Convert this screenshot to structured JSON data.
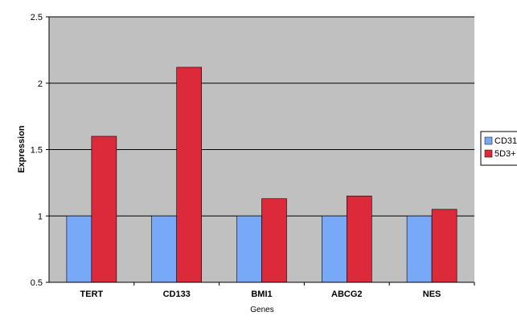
{
  "chart_data": {
    "type": "bar",
    "title": "",
    "xlabel": "Genes",
    "ylabel": "Expression",
    "categories": [
      "TERT",
      "CD133",
      "BMI1",
      "ABCG2",
      "NES"
    ],
    "series": [
      {
        "name": "CD31",
        "values": [
          1.0,
          1.0,
          1.0,
          1.0,
          1.0
        ],
        "color": "#78a8f8"
      },
      {
        "name": "5D3+",
        "values": [
          1.6,
          2.12,
          1.13,
          1.15,
          1.05
        ],
        "color": "#dd2a3b"
      }
    ],
    "ylim": [
      0.5,
      2.5
    ],
    "yticks": [
      0.5,
      1,
      1.5,
      2,
      2.5
    ],
    "ytick_labels": [
      "0.5",
      "1",
      "1.5",
      "2",
      "2.5"
    ],
    "grid": true,
    "legend_position": "right",
    "plot_background": "#c0c0c0"
  }
}
